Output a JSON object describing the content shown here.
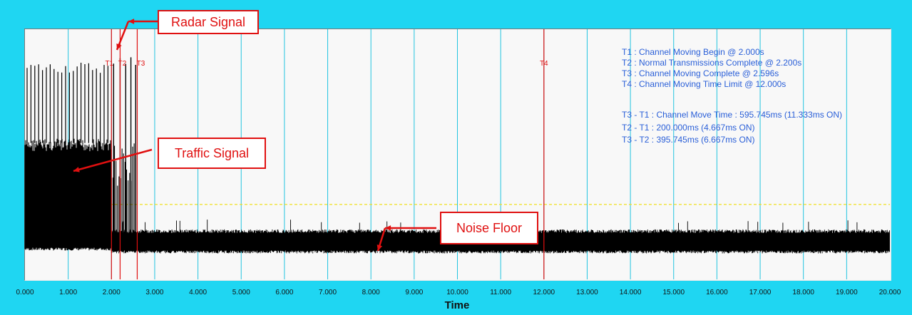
{
  "chart_data": {
    "type": "line",
    "title": "",
    "xlabel": "Time",
    "ylabel": "",
    "xlim": [
      0,
      20
    ],
    "x_ticks": [
      "0.000",
      "1.000",
      "2.000",
      "3.000",
      "4.000",
      "5.000",
      "6.000",
      "7.000",
      "8.000",
      "9.000",
      "10.000",
      "11.000",
      "12.000",
      "13.000",
      "14.000",
      "15.000",
      "16.000",
      "17.000",
      "18.000",
      "19.000",
      "20.000"
    ],
    "x_tick_values": [
      0,
      1,
      2,
      3,
      4,
      5,
      6,
      7,
      8,
      9,
      10,
      11,
      12,
      13,
      14,
      15,
      16,
      17,
      18,
      19,
      20
    ],
    "grid": "vertical",
    "threshold_level": 0.27,
    "series": [
      {
        "signal": "traffic",
        "x_range": [
          0.0,
          2.0
        ],
        "level_low": 0.06,
        "level_high": 0.55,
        "burst_peak": 0.92
      },
      {
        "signal": "radar",
        "pulses_x": [
          2.05,
          2.2,
          2.33,
          2.45,
          2.56
        ],
        "peak": 0.95
      },
      {
        "signal": "noise",
        "x_range": [
          2.0,
          20.0
        ],
        "level_low": 0.06,
        "level_high": 0.14
      }
    ],
    "markers": [
      {
        "label": "T1",
        "x": 2.0
      },
      {
        "label": "T2",
        "x": 2.2
      },
      {
        "label": "T3",
        "x": 2.596
      },
      {
        "label": "T4",
        "x": 12.0
      }
    ],
    "legend_text": [
      "T1 : Channel Moving Begin @ 2.000s",
      "T2 : Normal Transmissions Complete @ 2.200s",
      "T3 : Channel Moving Complete @ 2.596s",
      "T4 : Channel Moving Time Limit @ 12.000s",
      "T3 - T1 : Channel Move Time : 595.745ms (11.333ms ON)",
      "T2 - T1 : 200.000ms (4.667ms ON)",
      "T3 - T2 : 395.745ms (6.667ms ON)"
    ],
    "annotations": [
      {
        "label": "Radar Signal"
      },
      {
        "label": "Traffic Signal"
      },
      {
        "label": "Noise Floor"
      }
    ]
  },
  "colors": {
    "background": "#1fd6f2",
    "plot_bg": "#f8f8f8",
    "grid": "#22c4e0",
    "markers": "#e01010",
    "legend_text": "#2a5fd8",
    "threshold": "#f0e020",
    "signal": "#000000"
  }
}
